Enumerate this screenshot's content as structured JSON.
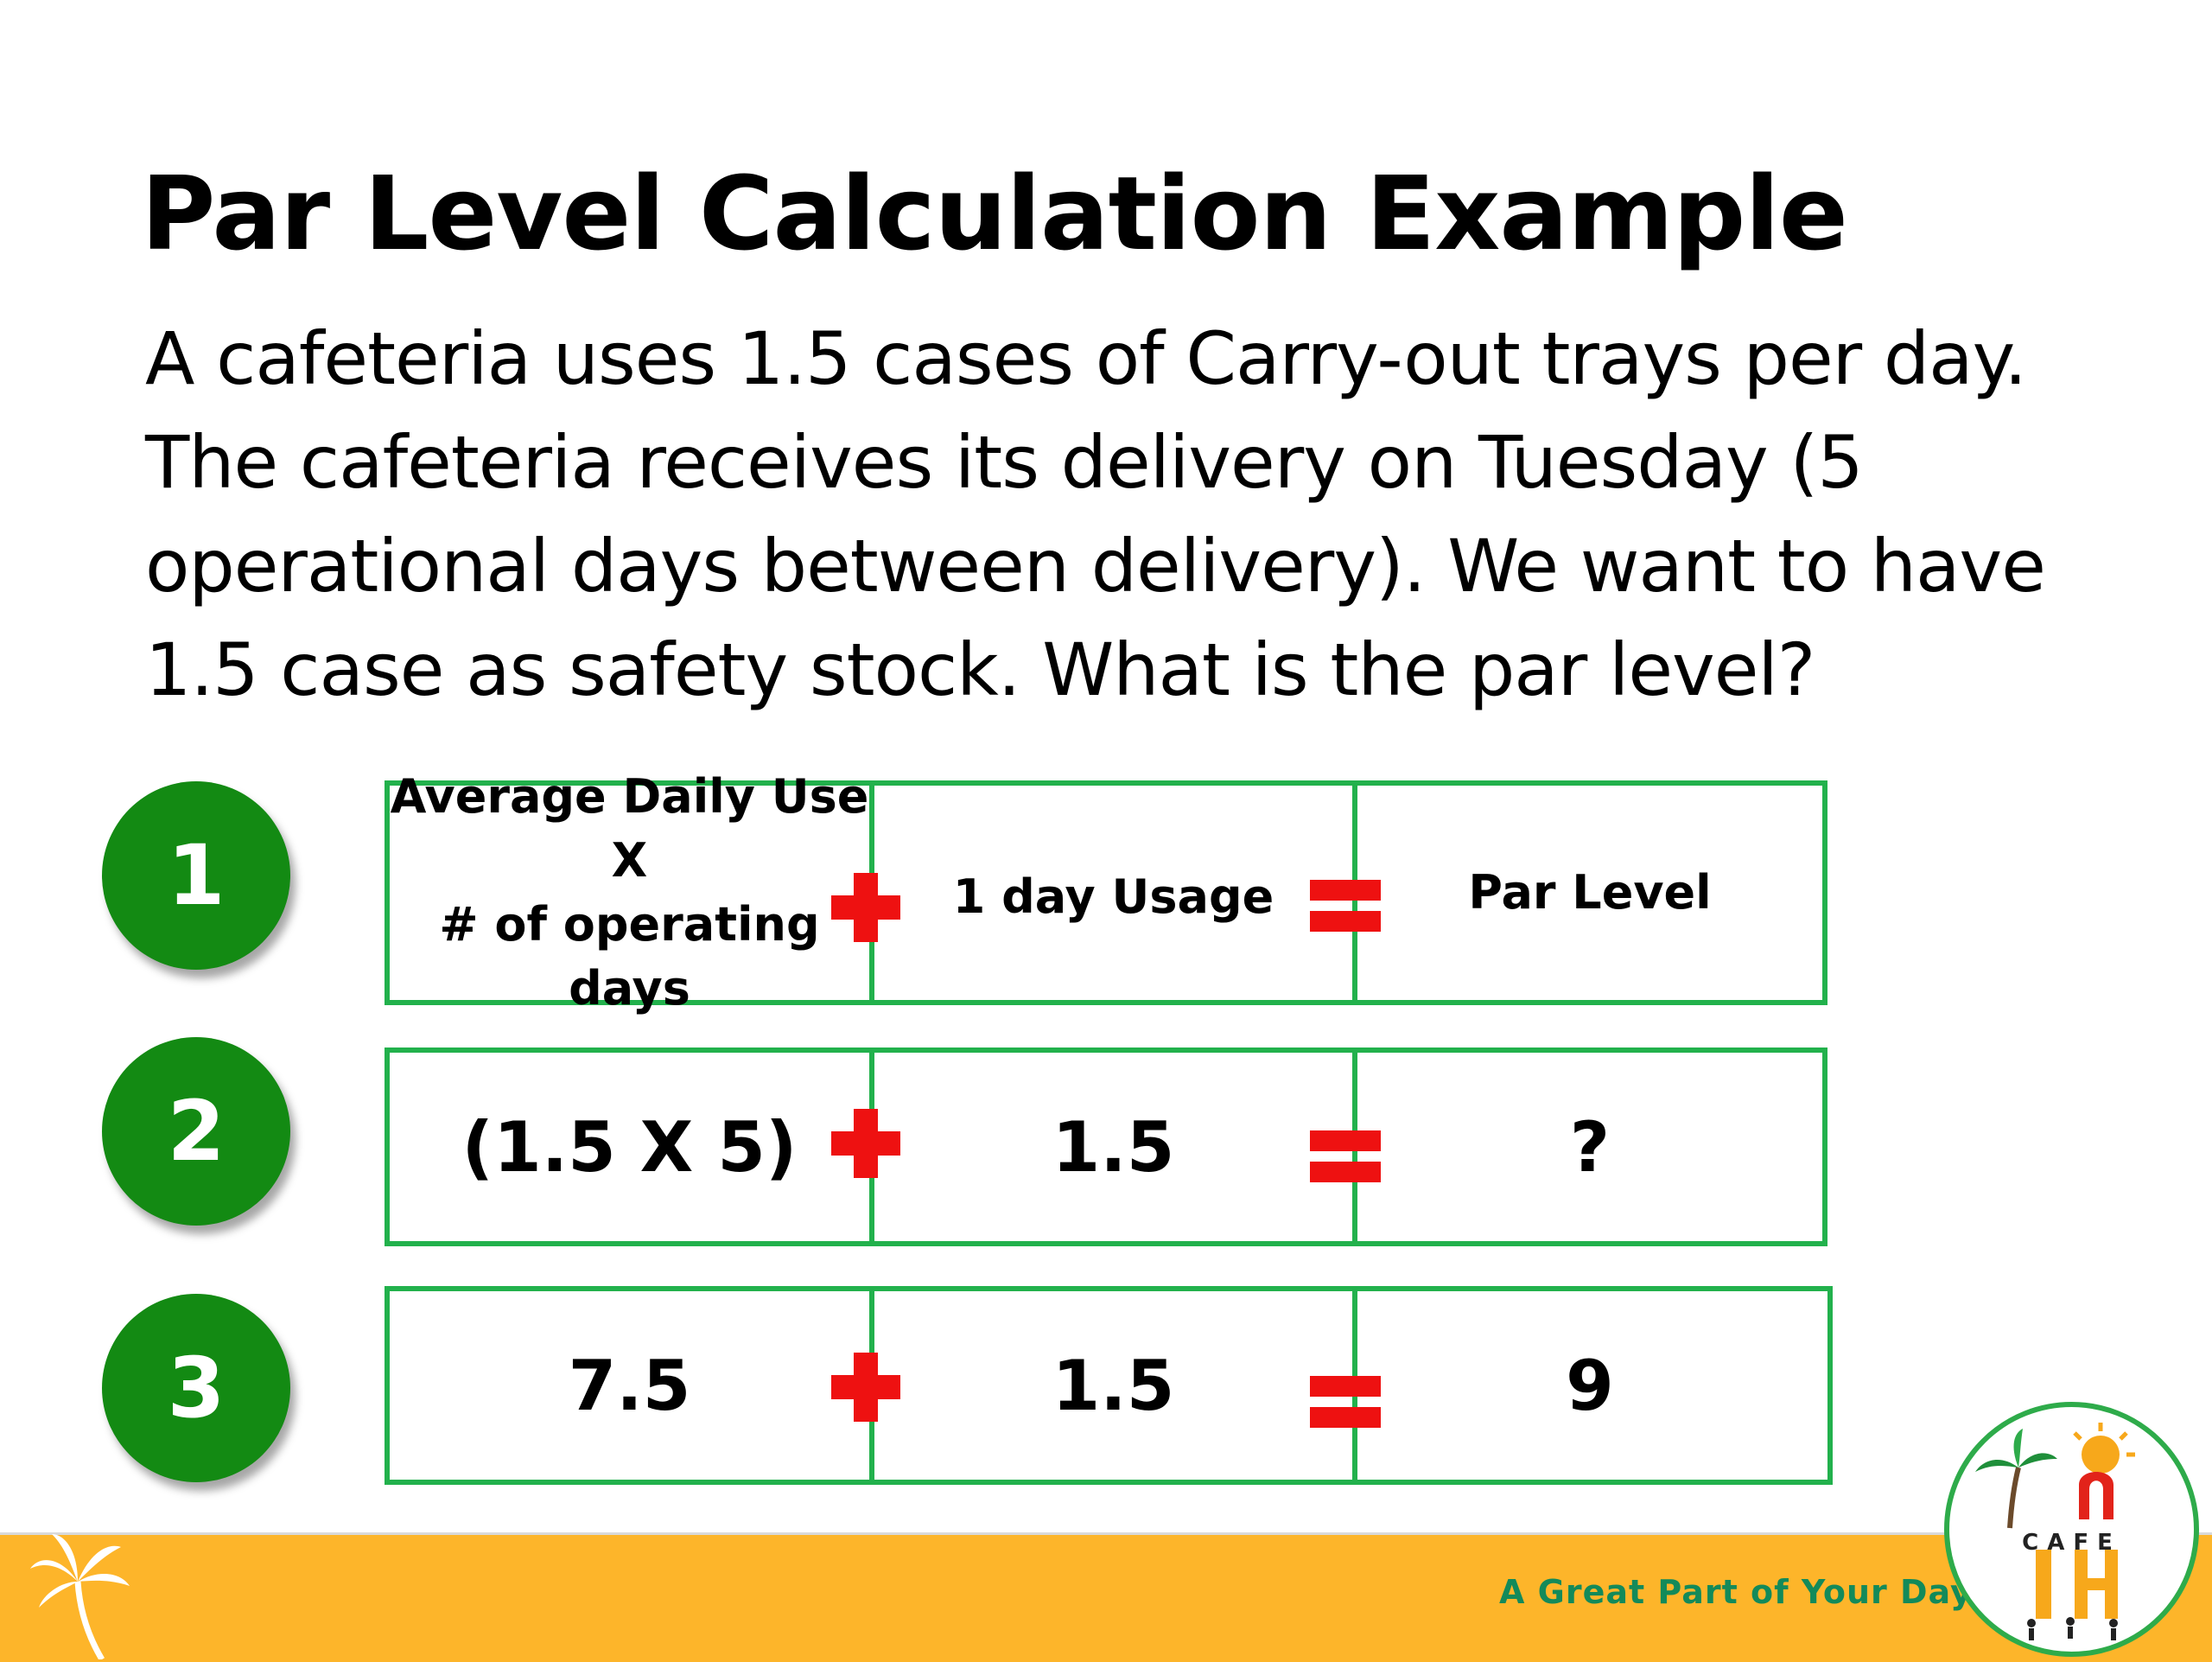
{
  "title": "Par Level Calculation Example",
  "paragraph": [
    "A cafeteria uses 1.5 cases of Carry-out trays per day.",
    "The cafeteria receives its delivery on Tuesday (5",
    "operational days between delivery). We want to have",
    "1.5 case as safety stock. What is the par level?"
  ],
  "steps": [
    "1",
    "2",
    "3"
  ],
  "rows": [
    {
      "col1": [
        "Average Daily Use",
        "X",
        "# of operating days"
      ],
      "col2": "1 day Usage",
      "col3": "Par Level"
    },
    {
      "col1": "(1.5 X 5)",
      "col2": "1.5",
      "col3": "?"
    },
    {
      "col1": "7.5",
      "col2": "1.5",
      "col3": "9"
    }
  ],
  "operators": {
    "plus": "plus-icon",
    "equals": "equals-icon"
  },
  "footer": {
    "tagline": "A Great Part of Your Day",
    "logo_text": "CAFE"
  },
  "colors": {
    "step_circle": "#138a13",
    "table_border": "#22b14c",
    "operator": "#ee1111",
    "footer_bar": "#fdb52a",
    "tagline": "#138a5a"
  }
}
